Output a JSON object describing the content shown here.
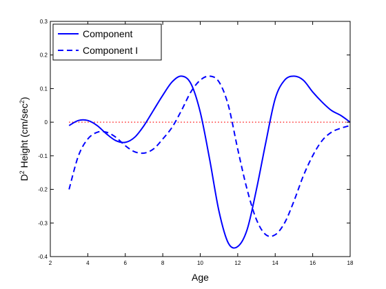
{
  "chart_data": {
    "type": "line",
    "xlabel": "Age",
    "ylabel": {
      "prefix": "D",
      "sup": "2",
      "middle": " Height (cm/sec",
      "sup2": "2",
      "suffix": ")"
    },
    "xlim": [
      2,
      18
    ],
    "ylim": [
      -0.4,
      0.3
    ],
    "xticks": [
      2,
      4,
      6,
      8,
      10,
      12,
      14,
      16,
      18
    ],
    "yticks": [
      -0.4,
      -0.3,
      -0.2,
      -0.1,
      0,
      0.1,
      0.2,
      0.3
    ],
    "xtick_labels": [
      "2",
      "4",
      "6",
      "8",
      "10",
      "12",
      "14",
      "16",
      "18"
    ],
    "ytick_labels": [
      "-0.4",
      "-0.3",
      "-0.2",
      "-0.1",
      "0",
      "0.1",
      "0.2",
      "0.3"
    ],
    "grid": false,
    "legend_position": "top-left",
    "series": [
      {
        "name": "Component",
        "style": "solid",
        "color": "#0000ff",
        "x": [
          3.0,
          3.5,
          4.0,
          4.5,
          5.0,
          5.5,
          6.0,
          6.5,
          7.0,
          7.5,
          8.0,
          8.5,
          9.0,
          9.5,
          10.0,
          10.5,
          11.0,
          11.5,
          12.0,
          12.5,
          13.0,
          13.5,
          14.0,
          14.5,
          15.0,
          15.5,
          16.0,
          16.5,
          17.0,
          17.5,
          18.0
        ],
        "y": [
          -0.01,
          0.005,
          0.005,
          -0.01,
          -0.035,
          -0.055,
          -0.06,
          -0.045,
          -0.01,
          0.035,
          0.08,
          0.12,
          0.137,
          0.115,
          0.03,
          -0.11,
          -0.265,
          -0.36,
          -0.37,
          -0.32,
          -0.2,
          -0.06,
          0.07,
          0.125,
          0.137,
          0.125,
          0.09,
          0.06,
          0.035,
          0.02,
          0.0
        ]
      },
      {
        "name": "Component I",
        "style": "dashed",
        "color": "#0000ff",
        "x": [
          3.0,
          3.5,
          4.0,
          4.5,
          5.0,
          5.5,
          6.0,
          6.5,
          7.0,
          7.5,
          8.0,
          8.5,
          9.0,
          9.5,
          10.0,
          10.5,
          11.0,
          11.5,
          12.0,
          12.5,
          13.0,
          13.5,
          14.0,
          14.5,
          15.0,
          15.5,
          16.0,
          16.5,
          17.0,
          17.5,
          18.0
        ],
        "y": [
          -0.2,
          -0.1,
          -0.05,
          -0.03,
          -0.03,
          -0.045,
          -0.07,
          -0.088,
          -0.092,
          -0.08,
          -0.05,
          -0.015,
          0.035,
          0.09,
          0.125,
          0.137,
          0.12,
          0.05,
          -0.08,
          -0.2,
          -0.29,
          -0.335,
          -0.335,
          -0.3,
          -0.235,
          -0.16,
          -0.1,
          -0.055,
          -0.03,
          -0.018,
          -0.01
        ]
      }
    ],
    "reference_line": {
      "y": 0,
      "style": "dotted",
      "color": "#ff0000"
    }
  }
}
